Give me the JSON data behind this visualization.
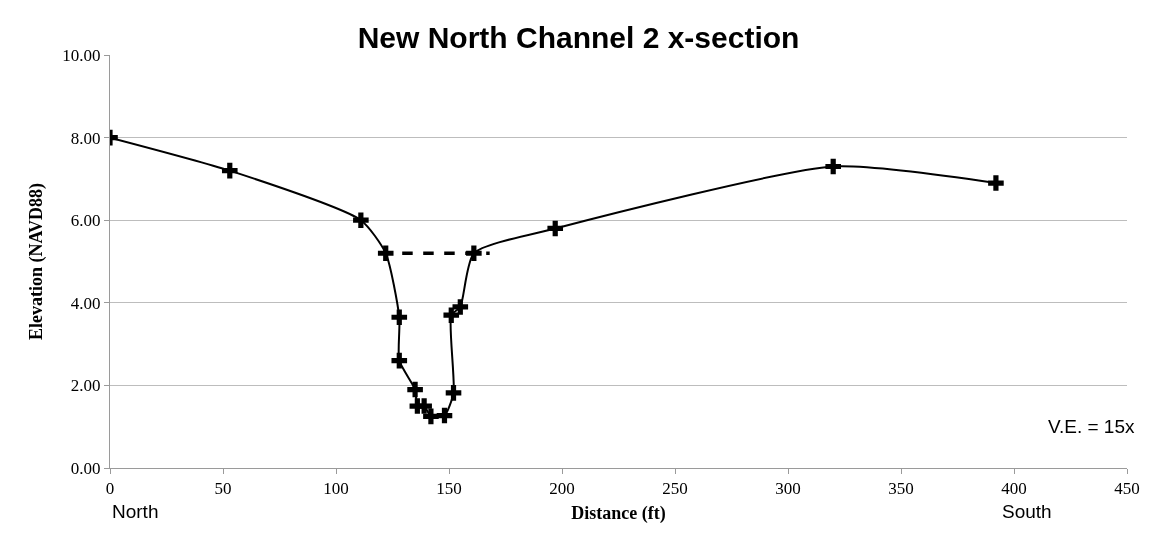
{
  "chart_data": {
    "type": "line",
    "title": "New North Channel 2 x-section",
    "xlabel": "Distance (ft)",
    "ylabel": "Elevation (NAVD88)",
    "series": [
      {
        "color": "#000000",
        "marker": "cross",
        "line_style": "solid",
        "x": [
          0,
          53,
          111,
          122,
          128,
          128,
          135,
          136,
          139,
          142,
          148,
          152,
          151,
          155,
          161,
          197,
          320,
          392
        ],
        "values": [
          8.0,
          7.2,
          6.0,
          5.2,
          3.65,
          2.6,
          1.9,
          1.5,
          1.5,
          1.25,
          1.27,
          1.82,
          3.7,
          3.9,
          5.2,
          5.8,
          7.3,
          6.9
        ]
      },
      {
        "type": "line",
        "color": "#000000",
        "marker": "none",
        "line_style": "dashed",
        "x": [
          120,
          168
        ],
        "values": [
          5.2,
          5.2
        ]
      }
    ],
    "xlim": [
      0,
      450
    ],
    "xticks": [
      0,
      50,
      100,
      150,
      200,
      250,
      300,
      350,
      400,
      450
    ],
    "ylim": [
      0,
      10
    ],
    "yticks": [
      {
        "value": 0,
        "label": "0.00"
      },
      {
        "value": 2,
        "label": "2.00"
      },
      {
        "value": 4,
        "label": "4.00"
      },
      {
        "value": 6,
        "label": "6.00"
      },
      {
        "value": 8,
        "label": "8.00"
      },
      {
        "value": 10,
        "label": "10.00"
      }
    ],
    "grid": "y",
    "annotations": [
      "V.E. = 15x",
      "North",
      "South"
    ]
  }
}
